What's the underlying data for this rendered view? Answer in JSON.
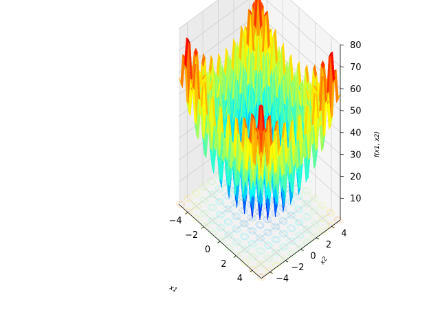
{
  "chart_data": {
    "type": "surface",
    "function": "rastrigin",
    "title": "",
    "xlabel": "x1",
    "ylabel": "x2",
    "zlabel": "f(x1, x2)",
    "xlim": [
      -5.12,
      5.12
    ],
    "ylim": [
      -5.12,
      5.12
    ],
    "zlim": [
      0,
      80
    ],
    "x_ticks": [
      "−4",
      "−2",
      "0",
      "2",
      "4"
    ],
    "y_ticks": [
      "−4",
      "−2",
      "0",
      "2",
      "4"
    ],
    "z_ticks": [
      "10",
      "20",
      "30",
      "40",
      "50",
      "60",
      "70",
      "80"
    ],
    "grid": true,
    "colormap": "jet",
    "contour_projection": "bottom",
    "grid_resolution": 42,
    "z_formula": "20 + x1^2 + x2^2 - 10*(cos(2*pi*x1) + cos(2*pi*x2))"
  }
}
